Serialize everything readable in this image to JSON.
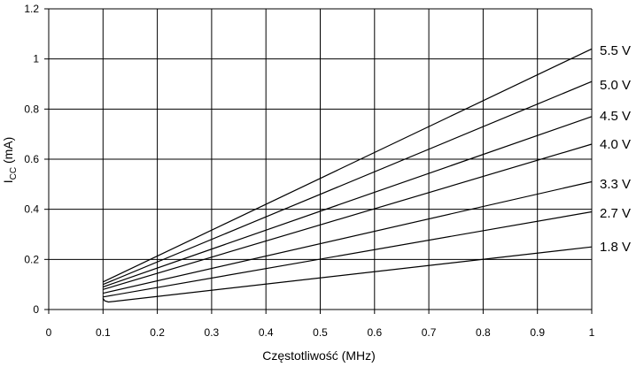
{
  "chart_data": {
    "type": "line",
    "xlabel": "Częstotliwość (MHz)",
    "ylabel_main": "I",
    "ylabel_sub": "CC",
    "ylabel_unit": " (mA)",
    "xlim": [
      0,
      1
    ],
    "ylim": [
      0,
      1.2
    ],
    "grid": true,
    "x_ticks": [
      "0",
      "0.1",
      "0.2",
      "0.3",
      "0.4",
      "0.5",
      "0.6",
      "0.7",
      "0.8",
      "0.9",
      "1"
    ],
    "y_ticks": [
      "0",
      "0.2",
      "0.4",
      "0.6",
      "0.8",
      "1",
      "1.2"
    ],
    "series": [
      {
        "name": "5.5 V",
        "x": [
          0.1,
          1.0
        ],
        "y": [
          0.11,
          1.04
        ]
      },
      {
        "name": "5.0 V",
        "x": [
          0.1,
          1.0
        ],
        "y": [
          0.1,
          0.91
        ]
      },
      {
        "name": "4.5 V",
        "x": [
          0.1,
          1.0
        ],
        "y": [
          0.09,
          0.77
        ]
      },
      {
        "name": "4.0 V",
        "x": [
          0.1,
          1.0
        ],
        "y": [
          0.08,
          0.66
        ]
      },
      {
        "name": "3.3 V",
        "x": [
          0.1,
          1.0
        ],
        "y": [
          0.065,
          0.51
        ]
      },
      {
        "name": "2.7 V",
        "x": [
          0.1,
          1.0
        ],
        "y": [
          0.05,
          0.39
        ]
      },
      {
        "name": "1.8 V",
        "x": [
          0.1,
          0.103,
          0.11,
          1.0
        ],
        "y": [
          0.045,
          0.035,
          0.03,
          0.25
        ]
      }
    ]
  }
}
